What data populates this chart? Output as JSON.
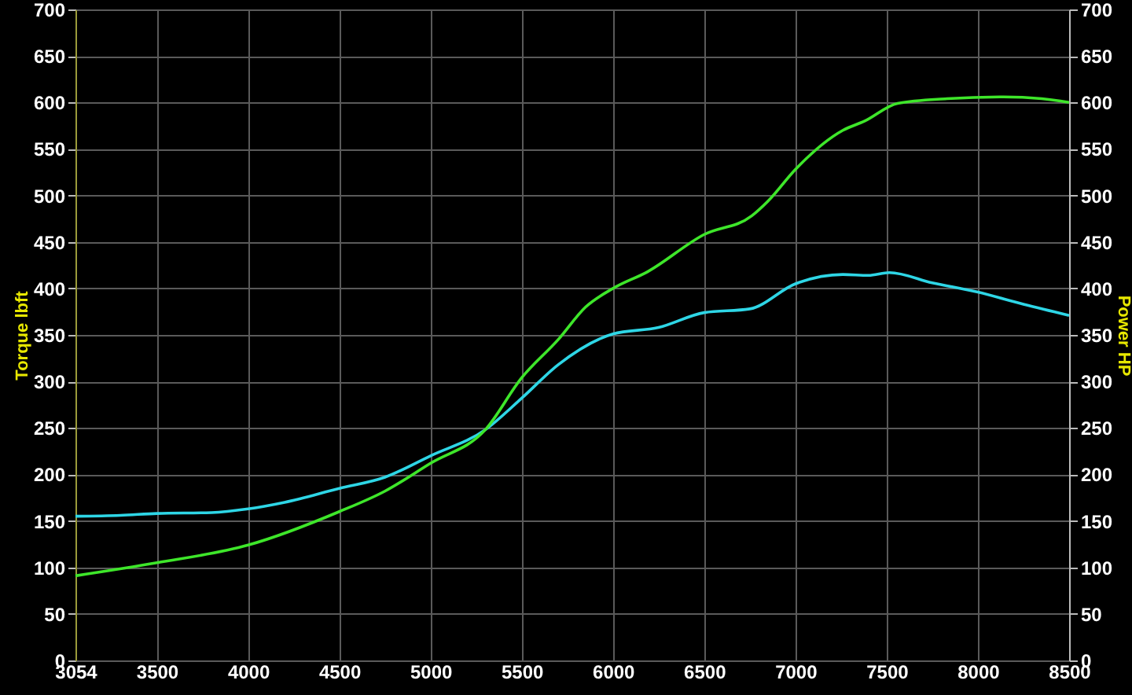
{
  "chart_data": {
    "type": "line",
    "ylabel": "Torque lbft",
    "y2label": "Power HP",
    "xlim": [
      3054,
      8500
    ],
    "xticks": [
      3054,
      3500,
      4000,
      4500,
      5000,
      5500,
      6000,
      6500,
      7000,
      7500,
      8000,
      8500
    ],
    "ylim": [
      0,
      700
    ],
    "yticks": [
      0,
      50,
      100,
      150,
      200,
      250,
      300,
      350,
      400,
      450,
      500,
      550,
      600,
      650,
      700
    ],
    "y2lim": [
      0,
      700
    ],
    "y2ticks": [
      0,
      50,
      100,
      150,
      200,
      250,
      300,
      350,
      400,
      450,
      500,
      550,
      600,
      650,
      700
    ],
    "grid": true,
    "series": [
      {
        "color": "#2ed6e6",
        "x": [
          3054,
          3300,
          3500,
          3800,
          4000,
          4200,
          4500,
          4750,
          5000,
          5300,
          5500,
          5700,
          6000,
          6250,
          6500,
          6750,
          7000,
          7260,
          7400,
          7515,
          7750,
          8000,
          8250,
          8500
        ],
        "values": [
          155,
          156,
          158,
          159,
          163,
          170,
          185,
          197,
          220,
          248,
          282,
          318,
          351,
          358,
          374,
          378,
          405,
          415,
          414,
          417,
          406,
          396,
          383,
          371
        ]
      },
      {
        "color": "#3ee62a",
        "axis": "y2",
        "x": [
          3054,
          3500,
          4000,
          4500,
          4750,
          5000,
          5300,
          5500,
          5700,
          5850,
          6000,
          6190,
          6500,
          6760,
          6850,
          7000,
          7260,
          7380,
          7560,
          7830,
          8140,
          8350,
          8500
        ],
        "values": [
          91,
          105,
          124,
          160,
          182,
          212,
          248,
          304,
          345,
          380,
          400,
          418,
          458,
          478,
          494,
          528,
          570,
          580,
          599,
          604,
          606,
          604,
          600
        ]
      }
    ]
  }
}
